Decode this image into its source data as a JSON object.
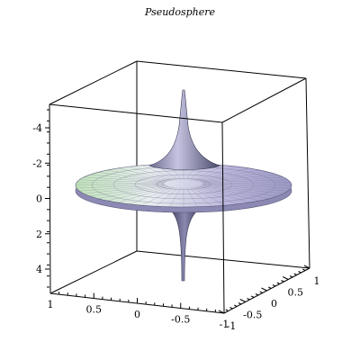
{
  "chart_data": {
    "type": "surface",
    "title": "Pseudosphere",
    "xlabel": "",
    "ylabel": "",
    "zlabel": "",
    "surface": "pseudosphere",
    "parametrization": {
      "x": "sech(u)*cos(v)",
      "y": "sech(u)*sin(v)",
      "z": "u - tanh(u)"
    },
    "x_ticks": [
      "1",
      "0.5",
      "0",
      "-0.5",
      "-1"
    ],
    "y_ticks": [
      "-1",
      "-0.5",
      "0",
      "0.5",
      "1"
    ],
    "z_ticks": [
      "4",
      "2",
      "0",
      "-2",
      "-4"
    ],
    "xlim": [
      -1,
      1
    ],
    "ylim": [
      -1,
      1
    ],
    "zlim": [
      -5,
      5
    ],
    "colors": {
      "surface_light": "#e6ece6",
      "surface_mid": "#b8b4d8",
      "surface_dark": "#4a4a6c",
      "rim_green": "#bfe3b8",
      "mesh": "#7a7890"
    }
  }
}
